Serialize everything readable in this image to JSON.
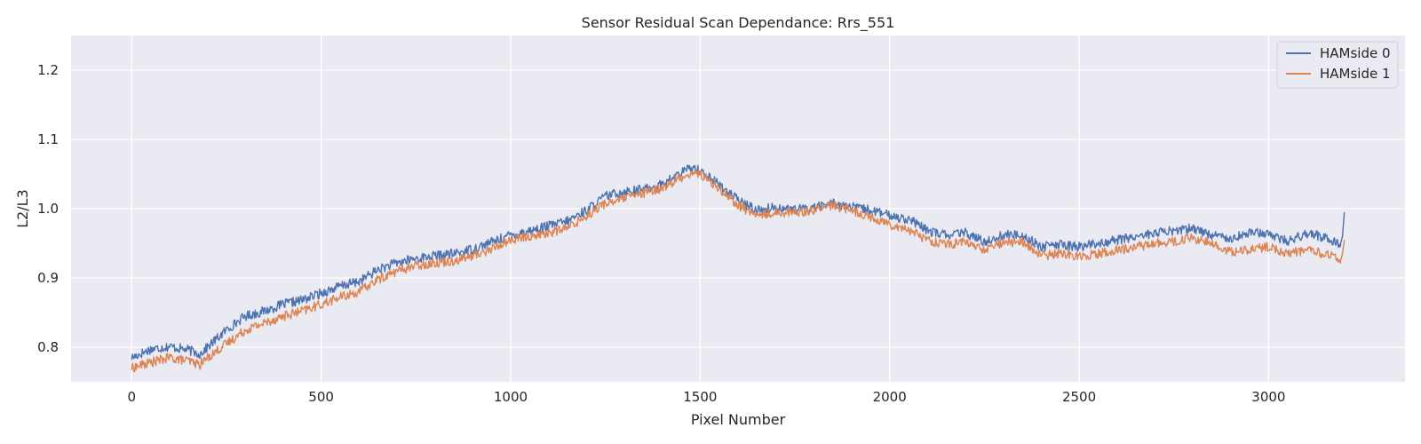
{
  "chart_data": {
    "type": "line",
    "title": "Sensor Residual Scan Dependance: Rrs_551",
    "xlabel": "Pixel Number",
    "ylabel": "L2/L3",
    "xlim": [
      -160,
      3360
    ],
    "ylim": [
      0.75,
      1.25
    ],
    "xticks": [
      0,
      500,
      1000,
      1500,
      2000,
      2500,
      3000
    ],
    "yticks": [
      0.8,
      0.9,
      1.0,
      1.1,
      1.2
    ],
    "grid": true,
    "legend_position": "top-right",
    "background": "#eaeaf2",
    "series": [
      {
        "name": "HAMside 0",
        "color": "#4c72b0",
        "x": [
          0,
          50,
          100,
          150,
          180,
          200,
          250,
          300,
          350,
          400,
          450,
          500,
          550,
          600,
          650,
          700,
          750,
          800,
          850,
          900,
          950,
          1000,
          1050,
          1100,
          1150,
          1200,
          1250,
          1300,
          1350,
          1400,
          1450,
          1480,
          1500,
          1550,
          1600,
          1650,
          1700,
          1750,
          1800,
          1850,
          1900,
          1950,
          2000,
          2050,
          2100,
          2150,
          2200,
          2250,
          2300,
          2350,
          2400,
          2450,
          2500,
          2550,
          2600,
          2650,
          2700,
          2750,
          2800,
          2850,
          2900,
          2950,
          3000,
          3050,
          3100,
          3150,
          3190,
          3195,
          3200
        ],
        "y": [
          0.785,
          0.797,
          0.801,
          0.796,
          0.79,
          0.8,
          0.825,
          0.845,
          0.852,
          0.862,
          0.868,
          0.878,
          0.888,
          0.895,
          0.912,
          0.922,
          0.928,
          0.932,
          0.935,
          0.942,
          0.952,
          0.962,
          0.968,
          0.975,
          0.982,
          0.998,
          1.018,
          1.025,
          1.028,
          1.035,
          1.052,
          1.06,
          1.055,
          1.035,
          1.012,
          0.998,
          1.002,
          0.998,
          1.002,
          1.008,
          1.002,
          0.998,
          0.99,
          0.985,
          0.968,
          0.962,
          0.965,
          0.952,
          0.962,
          0.962,
          0.945,
          0.948,
          0.945,
          0.95,
          0.955,
          0.96,
          0.965,
          0.968,
          0.972,
          0.962,
          0.958,
          0.965,
          0.965,
          0.952,
          0.965,
          0.958,
          0.95,
          0.96,
          0.995
        ]
      },
      {
        "name": "HAMside 1",
        "color": "#dd8452",
        "x": [
          0,
          50,
          100,
          150,
          180,
          200,
          250,
          300,
          350,
          400,
          450,
          500,
          550,
          600,
          650,
          700,
          750,
          800,
          850,
          900,
          950,
          1000,
          1050,
          1100,
          1150,
          1200,
          1250,
          1300,
          1350,
          1400,
          1450,
          1480,
          1500,
          1550,
          1600,
          1650,
          1700,
          1750,
          1800,
          1850,
          1900,
          1950,
          2000,
          2050,
          2100,
          2150,
          2200,
          2250,
          2300,
          2350,
          2400,
          2450,
          2500,
          2550,
          2600,
          2650,
          2700,
          2750,
          2800,
          2850,
          2900,
          2950,
          3000,
          3050,
          3100,
          3150,
          3190,
          3195,
          3200
        ],
        "y": [
          0.77,
          0.778,
          0.785,
          0.78,
          0.775,
          0.785,
          0.805,
          0.825,
          0.835,
          0.845,
          0.852,
          0.862,
          0.872,
          0.88,
          0.898,
          0.91,
          0.918,
          0.922,
          0.925,
          0.932,
          0.942,
          0.955,
          0.96,
          0.965,
          0.972,
          0.99,
          1.008,
          1.015,
          1.022,
          1.03,
          1.045,
          1.052,
          1.05,
          1.03,
          1.005,
          0.99,
          0.995,
          0.995,
          0.998,
          1.005,
          0.998,
          0.988,
          0.978,
          0.97,
          0.955,
          0.948,
          0.952,
          0.94,
          0.952,
          0.952,
          0.932,
          0.935,
          0.932,
          0.935,
          0.94,
          0.945,
          0.95,
          0.952,
          0.958,
          0.948,
          0.938,
          0.94,
          0.945,
          0.935,
          0.94,
          0.935,
          0.925,
          0.935,
          0.955
        ]
      }
    ]
  }
}
